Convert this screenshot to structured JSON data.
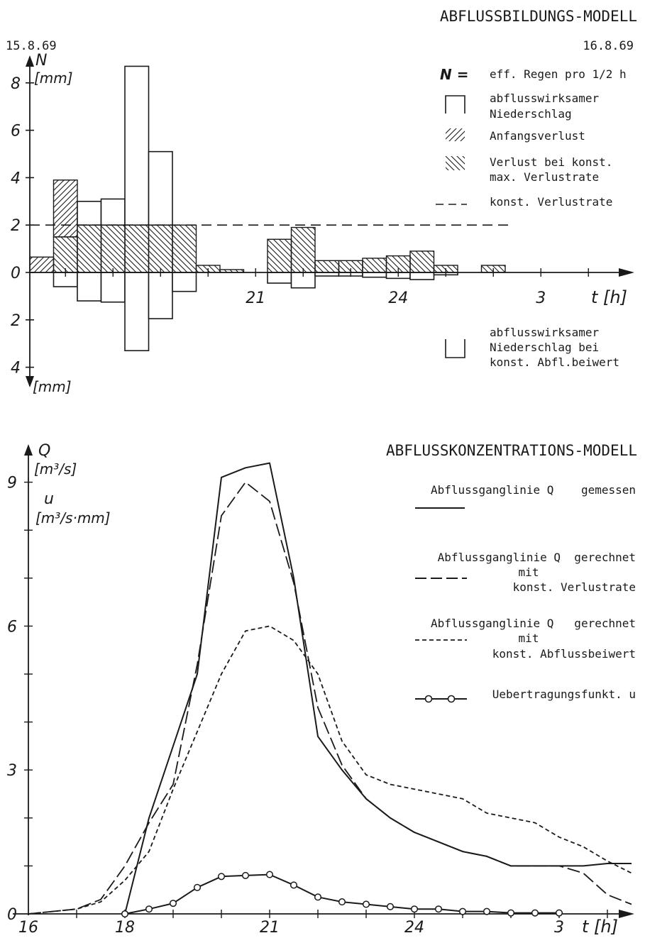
{
  "chart_data": [
    {
      "type": "bar",
      "title": "ABFLUSSBILDUNGS-MODELL",
      "date_start": "15.8.69",
      "date_end": "16.8.69",
      "y_symbol": "N",
      "y_unit": "[mm]",
      "y_unit_lower": "[mm]",
      "x_label": "t [h]",
      "ylim": [
        -4,
        8
      ],
      "x_ticks": [
        "21",
        "24",
        "3"
      ],
      "y_ticks_upper": [
        "8",
        "6",
        "4",
        "2",
        "0"
      ],
      "y_ticks_lower": [
        "2",
        "4"
      ],
      "const_loss_rate": 2.0,
      "bars": [
        {
          "t": 16.5,
          "initial_loss": 0.65,
          "const_loss": 0.0,
          "effective": 0.0,
          "effective_const_coeff": 0.0
        },
        {
          "t": 17.0,
          "initial_loss": 2.4,
          "const_loss": 1.5,
          "effective": 0.0,
          "effective_const_coeff": 0.6
        },
        {
          "t": 17.5,
          "initial_loss": 0.0,
          "const_loss": 2.0,
          "effective": 1.0,
          "effective_const_coeff": 1.2
        },
        {
          "t": 18.0,
          "initial_loss": 0.0,
          "const_loss": 2.0,
          "effective": 1.1,
          "effective_const_coeff": 1.25
        },
        {
          "t": 18.5,
          "initial_loss": 0.0,
          "const_loss": 2.0,
          "effective": 6.7,
          "effective_const_coeff": 3.3
        },
        {
          "t": 19.0,
          "initial_loss": 0.0,
          "const_loss": 2.0,
          "effective": 3.1,
          "effective_const_coeff": 1.95
        },
        {
          "t": 19.5,
          "initial_loss": 0.0,
          "const_loss": 2.0,
          "effective": 0.0,
          "effective_const_coeff": 0.8
        },
        {
          "t": 20.0,
          "initial_loss": 0.0,
          "const_loss": 0.3,
          "effective": 0.0,
          "effective_const_coeff": 0.0
        },
        {
          "t": 20.5,
          "initial_loss": 0.0,
          "const_loss": 0.12,
          "effective": 0.0,
          "effective_const_coeff": 0.0
        },
        {
          "t": 21.5,
          "initial_loss": 0.0,
          "const_loss": 1.4,
          "effective": 0.0,
          "effective_const_coeff": 0.45
        },
        {
          "t": 22.0,
          "initial_loss": 0.0,
          "const_loss": 1.9,
          "effective": 0.0,
          "effective_const_coeff": 0.65
        },
        {
          "t": 22.5,
          "initial_loss": 0.0,
          "const_loss": 0.5,
          "effective": 0.0,
          "effective_const_coeff": 0.15
        },
        {
          "t": 23.0,
          "initial_loss": 0.0,
          "const_loss": 0.5,
          "effective": 0.0,
          "effective_const_coeff": 0.15
        },
        {
          "t": 23.5,
          "initial_loss": 0.0,
          "const_loss": 0.6,
          "effective": 0.0,
          "effective_const_coeff": 0.2
        },
        {
          "t": 24.0,
          "initial_loss": 0.0,
          "const_loss": 0.7,
          "effective": 0.0,
          "effective_const_coeff": 0.25
        },
        {
          "t": 24.5,
          "initial_loss": 0.0,
          "const_loss": 0.9,
          "effective": 0.0,
          "effective_const_coeff": 0.3
        },
        {
          "t": 25.0,
          "initial_loss": 0.0,
          "const_loss": 0.3,
          "effective": 0.0,
          "effective_const_coeff": 0.1
        },
        {
          "t": 26.0,
          "initial_loss": 0.0,
          "const_loss": 0.3,
          "effective": 0.0,
          "effective_const_coeff": 0.0
        }
      ],
      "legend": {
        "header_symbol": "N =",
        "header_text": "eff. Regen pro 1/2 h",
        "items": [
          {
            "lines": [
              "abflusswirksamer",
              "Niederschlag"
            ]
          },
          {
            "lines": [
              "Anfangsverlust"
            ]
          },
          {
            "lines": [
              "Verlust bei konst.",
              "max. Verlustrate"
            ]
          },
          {
            "lines": [
              "konst. Verlustrate"
            ]
          }
        ],
        "lower_item": {
          "lines": [
            "abflusswirksamer",
            "Niederschlag bei",
            "konst. Abfl.beiwert"
          ]
        }
      }
    },
    {
      "type": "line",
      "title": "ABFLUSSKONZENTRATIONS-MODELL",
      "y_symbol_1": "Q",
      "y_unit_1": "[m³/s]",
      "y_symbol_2": "u",
      "y_unit_2": "[m³/s·mm]",
      "x_label": "t [h]",
      "ylim": [
        0,
        9.5
      ],
      "x_ticks": [
        "16",
        "18",
        "21",
        "24",
        "3"
      ],
      "y_ticks": [
        "9",
        "6",
        "3",
        "0"
      ],
      "series": [
        {
          "name": "Abflussganglinie Q gemessen",
          "style": "solid",
          "x": [
            18.0,
            18.5,
            19.0,
            19.5,
            20.0,
            20.5,
            21.0,
            21.5,
            22.0,
            22.5,
            23.0,
            23.5,
            24.0,
            24.5,
            25.0,
            25.5,
            26.0,
            26.5,
            27.0,
            27.5,
            28.0,
            28.5
          ],
          "y": [
            0.0,
            2.0,
            3.5,
            5.0,
            9.1,
            9.3,
            9.4,
            7.0,
            3.7,
            3.0,
            2.4,
            2.0,
            1.7,
            1.5,
            1.3,
            1.2,
            1.0,
            1.0,
            1.0,
            1.0,
            1.05,
            1.05
          ]
        },
        {
          "name": "Abflussganglinie Q gerechnet mit konst. Verlustrate",
          "style": "longdash",
          "x": [
            16.0,
            16.5,
            17.0,
            17.5,
            18.0,
            18.5,
            19.0,
            19.5,
            20.0,
            20.5,
            21.0,
            21.5,
            22.0,
            22.5,
            23.0,
            23.5,
            24.0,
            24.5,
            25.0,
            25.5,
            26.0,
            26.5,
            27.0,
            27.5,
            28.0,
            28.5
          ],
          "y": [
            0.0,
            0.05,
            0.1,
            0.3,
            1.0,
            1.9,
            2.7,
            5.2,
            8.3,
            9.0,
            8.6,
            6.9,
            4.3,
            3.1,
            2.4,
            2.0,
            1.7,
            1.5,
            1.3,
            1.2,
            1.0,
            1.0,
            1.0,
            0.85,
            0.4,
            0.2
          ]
        },
        {
          "name": "Abflussganglinie Q gerechnet mit konst. Abflussbeiwert",
          "style": "shortdash",
          "x": [
            16.0,
            16.5,
            17.0,
            17.5,
            18.0,
            18.5,
            19.0,
            19.5,
            20.0,
            20.5,
            21.0,
            21.5,
            22.0,
            22.5,
            23.0,
            23.5,
            24.0,
            24.5,
            25.0,
            25.5,
            26.0,
            26.5,
            27.0,
            27.5,
            28.0,
            28.5
          ],
          "y": [
            0.0,
            0.05,
            0.1,
            0.25,
            0.7,
            1.3,
            2.6,
            3.8,
            5.0,
            5.9,
            6.0,
            5.7,
            5.0,
            3.6,
            2.9,
            2.7,
            2.6,
            2.5,
            2.4,
            2.1,
            2.0,
            1.9,
            1.6,
            1.4,
            1.1,
            0.85
          ]
        },
        {
          "name": "Uebertragungsfunkt. u",
          "style": "circles",
          "x": [
            18.0,
            18.5,
            19.0,
            19.5,
            20.0,
            20.5,
            21.0,
            21.5,
            22.0,
            22.5,
            23.0,
            23.5,
            24.0,
            24.5,
            25.0,
            25.5,
            26.0,
            26.5,
            27.0
          ],
          "y": [
            0.0,
            0.1,
            0.22,
            0.55,
            0.78,
            0.8,
            0.82,
            0.6,
            0.35,
            0.25,
            0.2,
            0.15,
            0.1,
            0.1,
            0.05,
            0.05,
            0.02,
            0.02,
            0.02
          ]
        }
      ],
      "legend": [
        {
          "lines": [
            "Abflussganglinie Q    gemessen"
          ],
          "style": "solid"
        },
        {
          "lines": [
            "Abflussganglinie Q  gerechnet",
            "mit",
            "konst. Verlustrate"
          ],
          "style": "longdash"
        },
        {
          "lines": [
            "Abflussganglinie Q   gerechnet",
            "mit",
            "konst. Abflussbeiwert"
          ],
          "style": "shortdash"
        },
        {
          "lines": [
            "Uebertragungsfunkt. u"
          ],
          "style": "circles"
        }
      ]
    }
  ]
}
